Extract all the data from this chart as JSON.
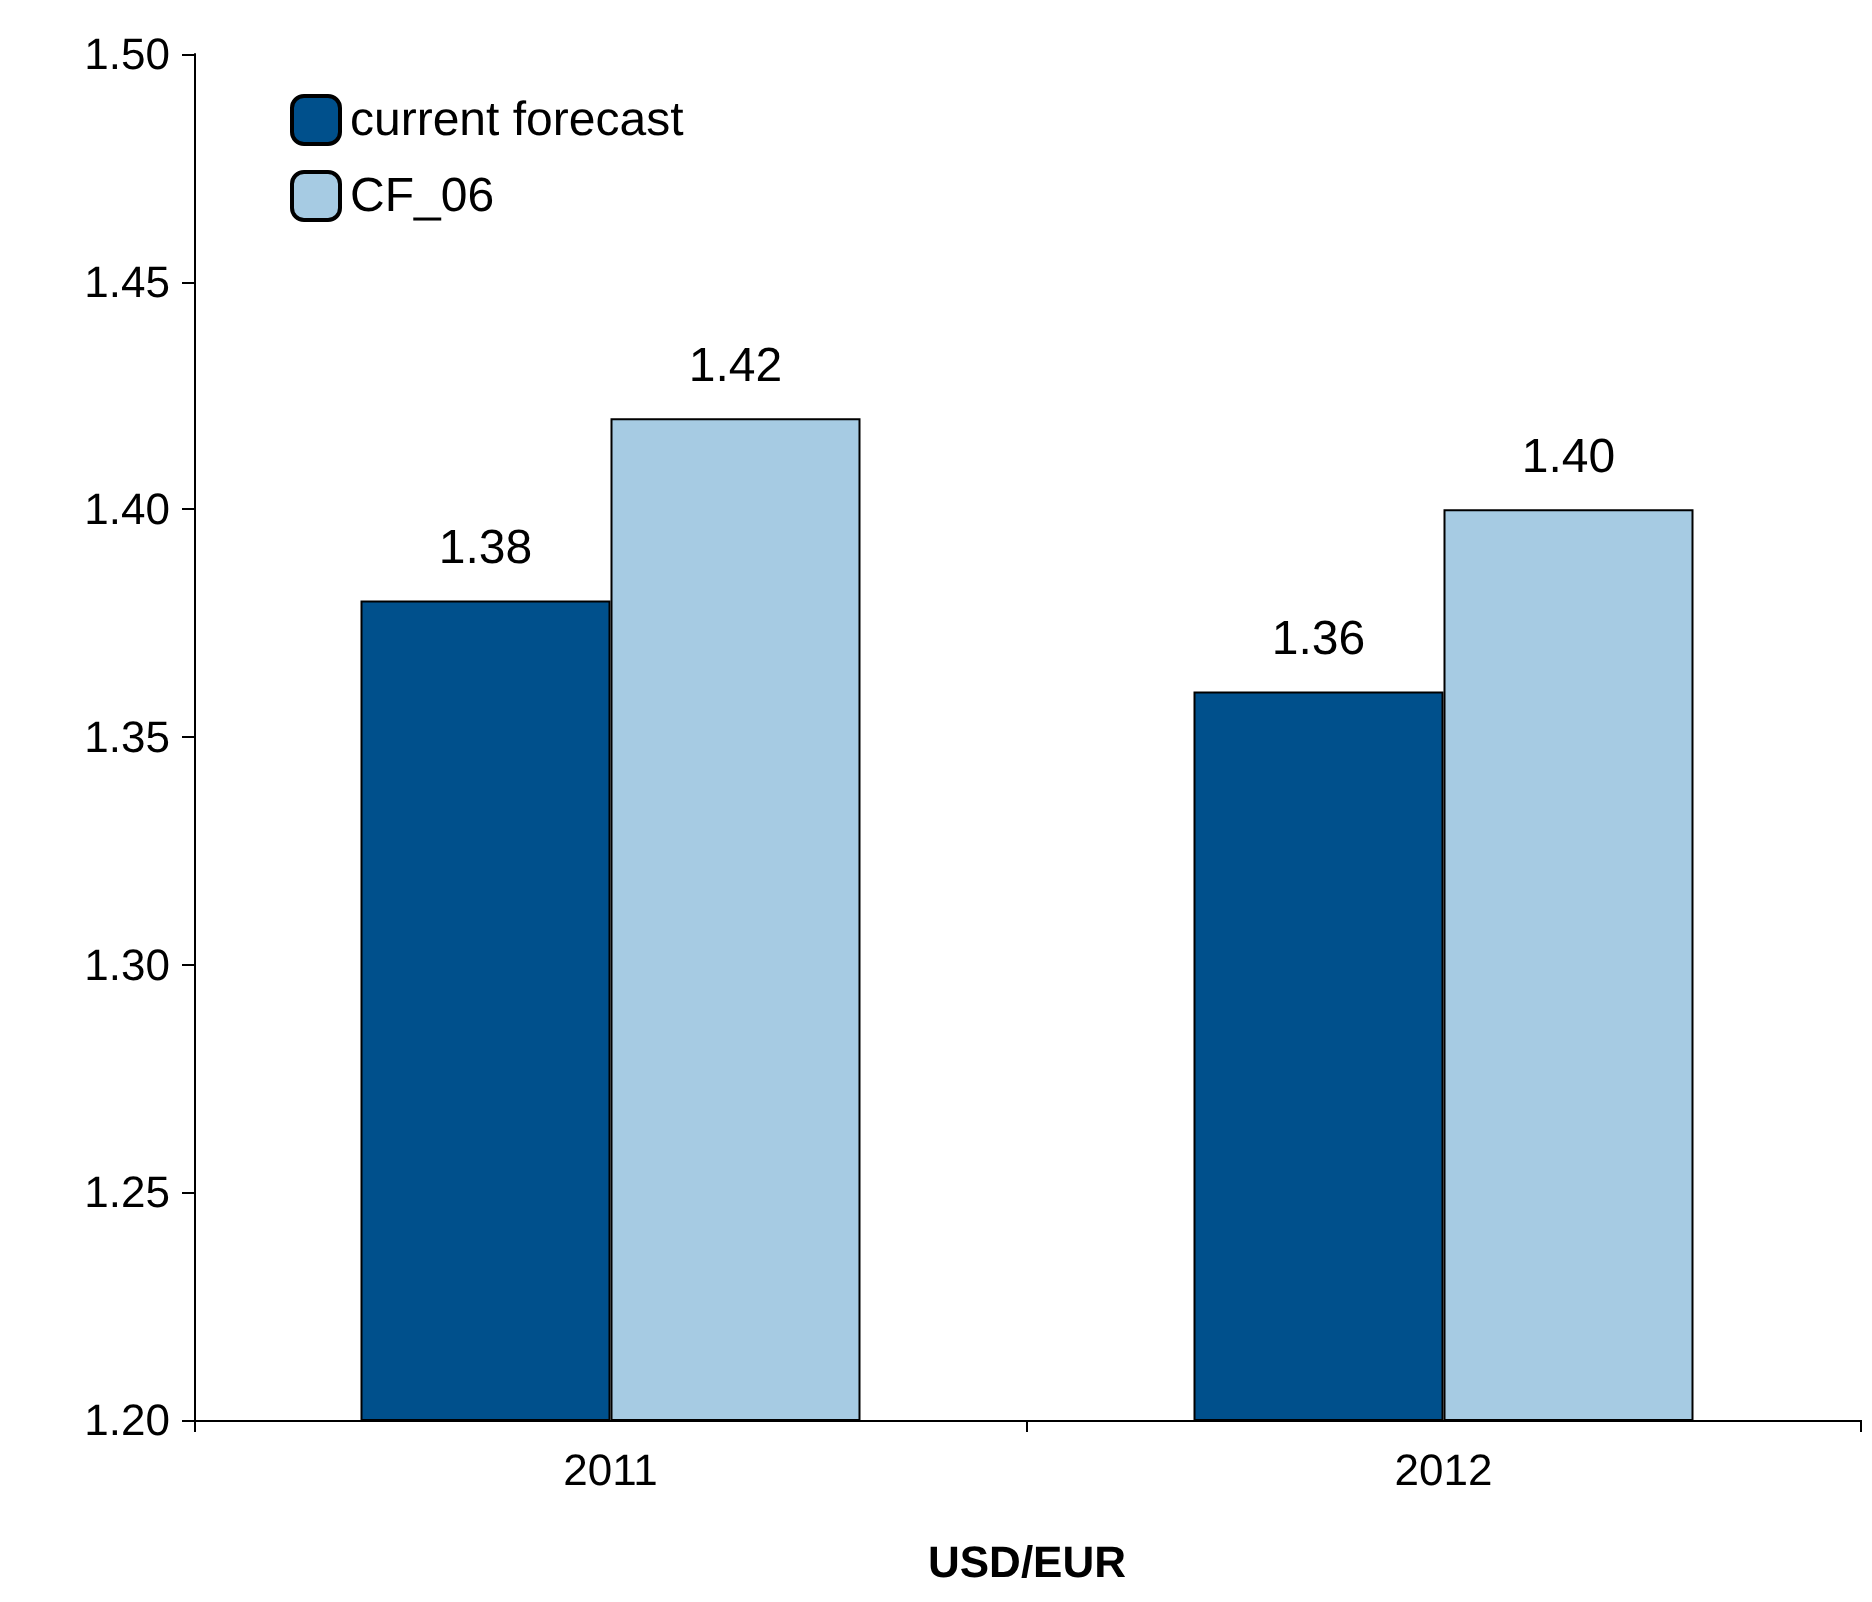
{
  "chart_data": {
    "type": "bar",
    "xlabel": "USD/EUR",
    "categories": [
      "2011",
      "2012"
    ],
    "series": [
      {
        "name": "current forecast",
        "color": "#00508c",
        "values": [
          1.38,
          1.36
        ],
        "value_labels": [
          "1.38",
          "1.36"
        ]
      },
      {
        "name": "CF_06",
        "color": "#a6cbe3",
        "values": [
          1.42,
          1.4
        ],
        "value_labels": [
          "1.42",
          "1.40"
        ]
      }
    ],
    "ylim": [
      1.2,
      1.5
    ],
    "yticks": [
      {
        "value": 1.2,
        "label": "1.20"
      },
      {
        "value": 1.25,
        "label": "1.25"
      },
      {
        "value": 1.3,
        "label": "1.30"
      },
      {
        "value": 1.35,
        "label": "1.35"
      },
      {
        "value": 1.4,
        "label": "1.40"
      },
      {
        "value": 1.45,
        "label": "1.45"
      },
      {
        "value": 1.5,
        "label": "1.50"
      }
    ],
    "grid": false,
    "legend": "top left"
  }
}
